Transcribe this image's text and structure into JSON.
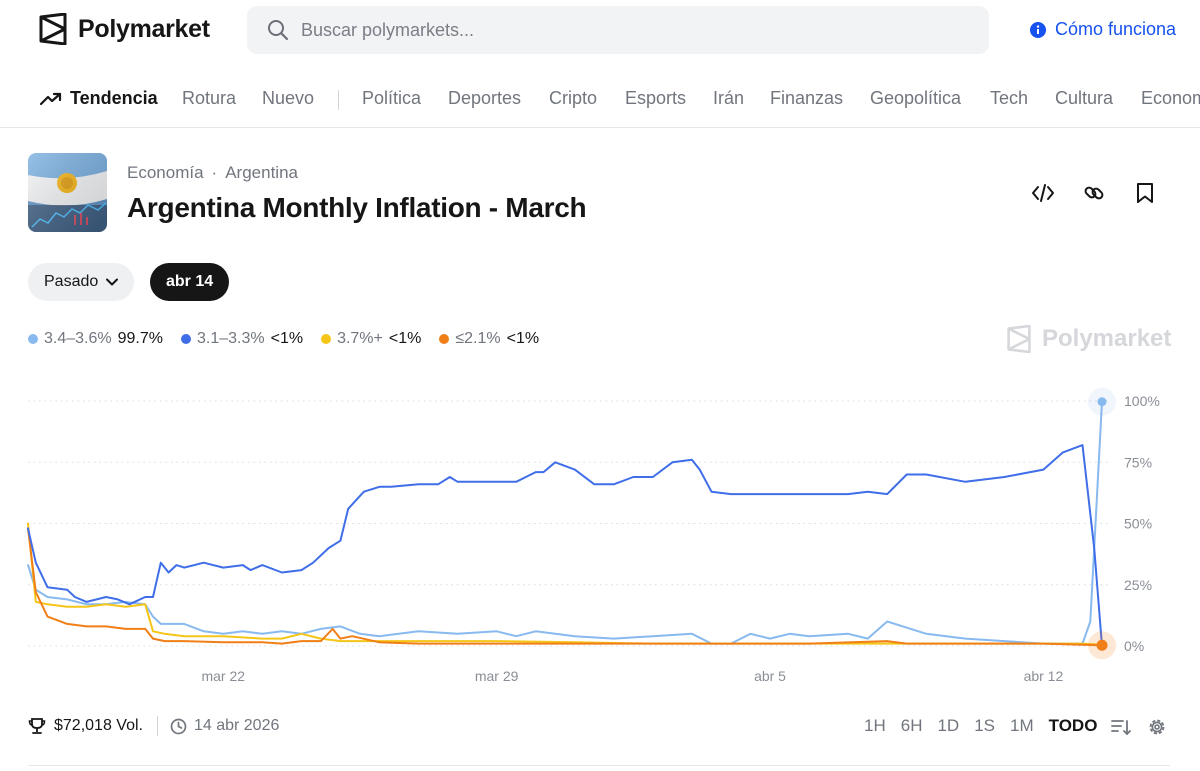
{
  "header": {
    "logo_text": "Polymarket",
    "search_placeholder": "Buscar polymarkets...",
    "how_it_works": "Cómo funciona",
    "accent_color": "#1652f0"
  },
  "nav": {
    "trending": "Tendencia",
    "items": [
      "Rotura",
      "Nuevo",
      "Política",
      "Deportes",
      "Cripto",
      "Esports",
      "Irán",
      "Finanzas",
      "Geopolítica",
      "Tech",
      "Cultura",
      "Econom"
    ]
  },
  "market": {
    "category": "Economía",
    "separator": "·",
    "subcategory": "Argentina",
    "title": "Argentina Monthly Inflation - March",
    "image_icon": "argentina-flag-icon"
  },
  "controls": {
    "past_label": "Pasado",
    "date_label": "abr 14"
  },
  "legend": [
    {
      "label": "3.4–3.6%",
      "value": "99.7%",
      "color": "#88b9ef"
    },
    {
      "label": "3.1–3.3%",
      "value": "<1%",
      "color": "#3f6ee8"
    },
    {
      "label": "3.7%+",
      "value": "<1%",
      "color": "#f5c518"
    },
    {
      "label": "≤2.1%",
      "value": "<1%",
      "color": "#f07f18"
    }
  ],
  "watermark": "Polymarket",
  "footer": {
    "volume": "$72,018 Vol.",
    "date": "14 abr 2026",
    "ranges": [
      "1H",
      "6H",
      "1D",
      "1S",
      "1M",
      "TODO"
    ],
    "active_range": "TODO"
  },
  "chart_data": {
    "type": "line",
    "x_domain": [
      0,
      27.5
    ],
    "x_ticks": [
      {
        "x": 5,
        "label": "mar 22"
      },
      {
        "x": 12,
        "label": "mar 29"
      },
      {
        "x": 19,
        "label": "abr 5"
      },
      {
        "x": 26,
        "label": "abr 12"
      }
    ],
    "ylim": [
      0,
      100
    ],
    "y_ticks": [
      0,
      25,
      50,
      75,
      100
    ],
    "y_tick_labels": [
      "0%",
      "25%",
      "50%",
      "75%",
      "100%"
    ],
    "grid": true,
    "series": [
      {
        "name": "3.1–3.3%",
        "color": "#3f6ee8",
        "x": [
          0,
          0.2,
          0.5,
          1,
          1.2,
          1.5,
          2,
          2.3,
          2.6,
          3,
          3.2,
          3.4,
          3.6,
          3.8,
          4,
          4.5,
          5,
          5.5,
          5.7,
          6,
          6.5,
          7,
          7.3,
          7.7,
          8,
          8.2,
          8.6,
          9,
          9.3,
          10,
          10.5,
          10.8,
          11,
          12,
          12.5,
          13,
          13.2,
          13.5,
          14,
          14.5,
          15,
          15.5,
          16,
          16.5,
          17,
          17.2,
          17.5,
          18,
          18.5,
          19,
          20,
          21,
          21.5,
          22,
          22.5,
          23,
          24,
          25,
          26,
          26.5,
          27,
          27.3,
          27.5
        ],
        "values": [
          48,
          34,
          24,
          23,
          20,
          18,
          20,
          19,
          17,
          20,
          20,
          34,
          30,
          33,
          32,
          34,
          32,
          33,
          31,
          33,
          30,
          31,
          34,
          40,
          43,
          56,
          63,
          65,
          65,
          66,
          66,
          69,
          67,
          67,
          67,
          71,
          71,
          75,
          72,
          66,
          66,
          69,
          69,
          75,
          76,
          72,
          63,
          62,
          62,
          62,
          62,
          62,
          63,
          62,
          70,
          70,
          67,
          69,
          72,
          79,
          82,
          40,
          0
        ]
      },
      {
        "name": "3.4–3.6%",
        "color": "#88b9ef",
        "x": [
          0,
          0.2,
          0.5,
          1,
          1.5,
          2,
          2.5,
          3,
          3.2,
          3.4,
          4,
          4.5,
          5,
          5.5,
          6,
          6.5,
          7,
          7.5,
          8,
          8.5,
          9,
          10,
          11,
          12,
          12.5,
          13,
          14,
          15,
          16,
          17,
          17.5,
          18,
          18.5,
          19,
          19.5,
          20,
          21,
          21.5,
          22,
          23,
          24,
          25,
          26,
          26.5,
          27,
          27.2,
          27.5
        ],
        "values": [
          33,
          23,
          20,
          19,
          17,
          17,
          18,
          17,
          12,
          9,
          9,
          6,
          5,
          6,
          5,
          6,
          5,
          7,
          8,
          5,
          4,
          6,
          5,
          6,
          4,
          6,
          4,
          3,
          4,
          5,
          1,
          1,
          5,
          3,
          5,
          4,
          5,
          3,
          10,
          5,
          3,
          2,
          1,
          1,
          1,
          10,
          99.7
        ]
      },
      {
        "name": "3.7%+",
        "color": "#f5c518",
        "x": [
          0,
          0.2,
          0.5,
          1,
          1.5,
          2,
          2.5,
          3,
          3.2,
          3.5,
          4,
          5,
          6,
          6.5,
          7,
          7.5,
          8,
          9,
          10,
          12,
          14,
          16,
          18,
          20,
          22,
          24,
          26,
          27,
          27.5
        ],
        "values": [
          50,
          18,
          17,
          16,
          16,
          17,
          16,
          17,
          6,
          5,
          4,
          4,
          3,
          3,
          5,
          3,
          2,
          2,
          2,
          2,
          1.5,
          1,
          1,
          1,
          1,
          1,
          1,
          1,
          0.5
        ]
      },
      {
        "name": "≤2.1%",
        "color": "#f07f18",
        "x": [
          0,
          0.2,
          0.5,
          1,
          1.5,
          2,
          2.5,
          3,
          3.2,
          3.5,
          4,
          5,
          6,
          6.5,
          7,
          7.5,
          7.8,
          8,
          8.3,
          9,
          10,
          12,
          14,
          16,
          18,
          20,
          22,
          22.5,
          23,
          24,
          26,
          27,
          27.5
        ],
        "values": [
          48,
          22,
          12,
          9,
          8,
          8,
          7,
          7,
          3,
          2,
          2,
          1.5,
          1.5,
          1,
          2,
          2,
          7,
          3,
          4,
          1.5,
          1,
          1,
          1,
          1,
          1,
          1,
          2,
          1,
          1,
          1,
          1,
          0.5,
          0.3
        ]
      }
    ]
  }
}
